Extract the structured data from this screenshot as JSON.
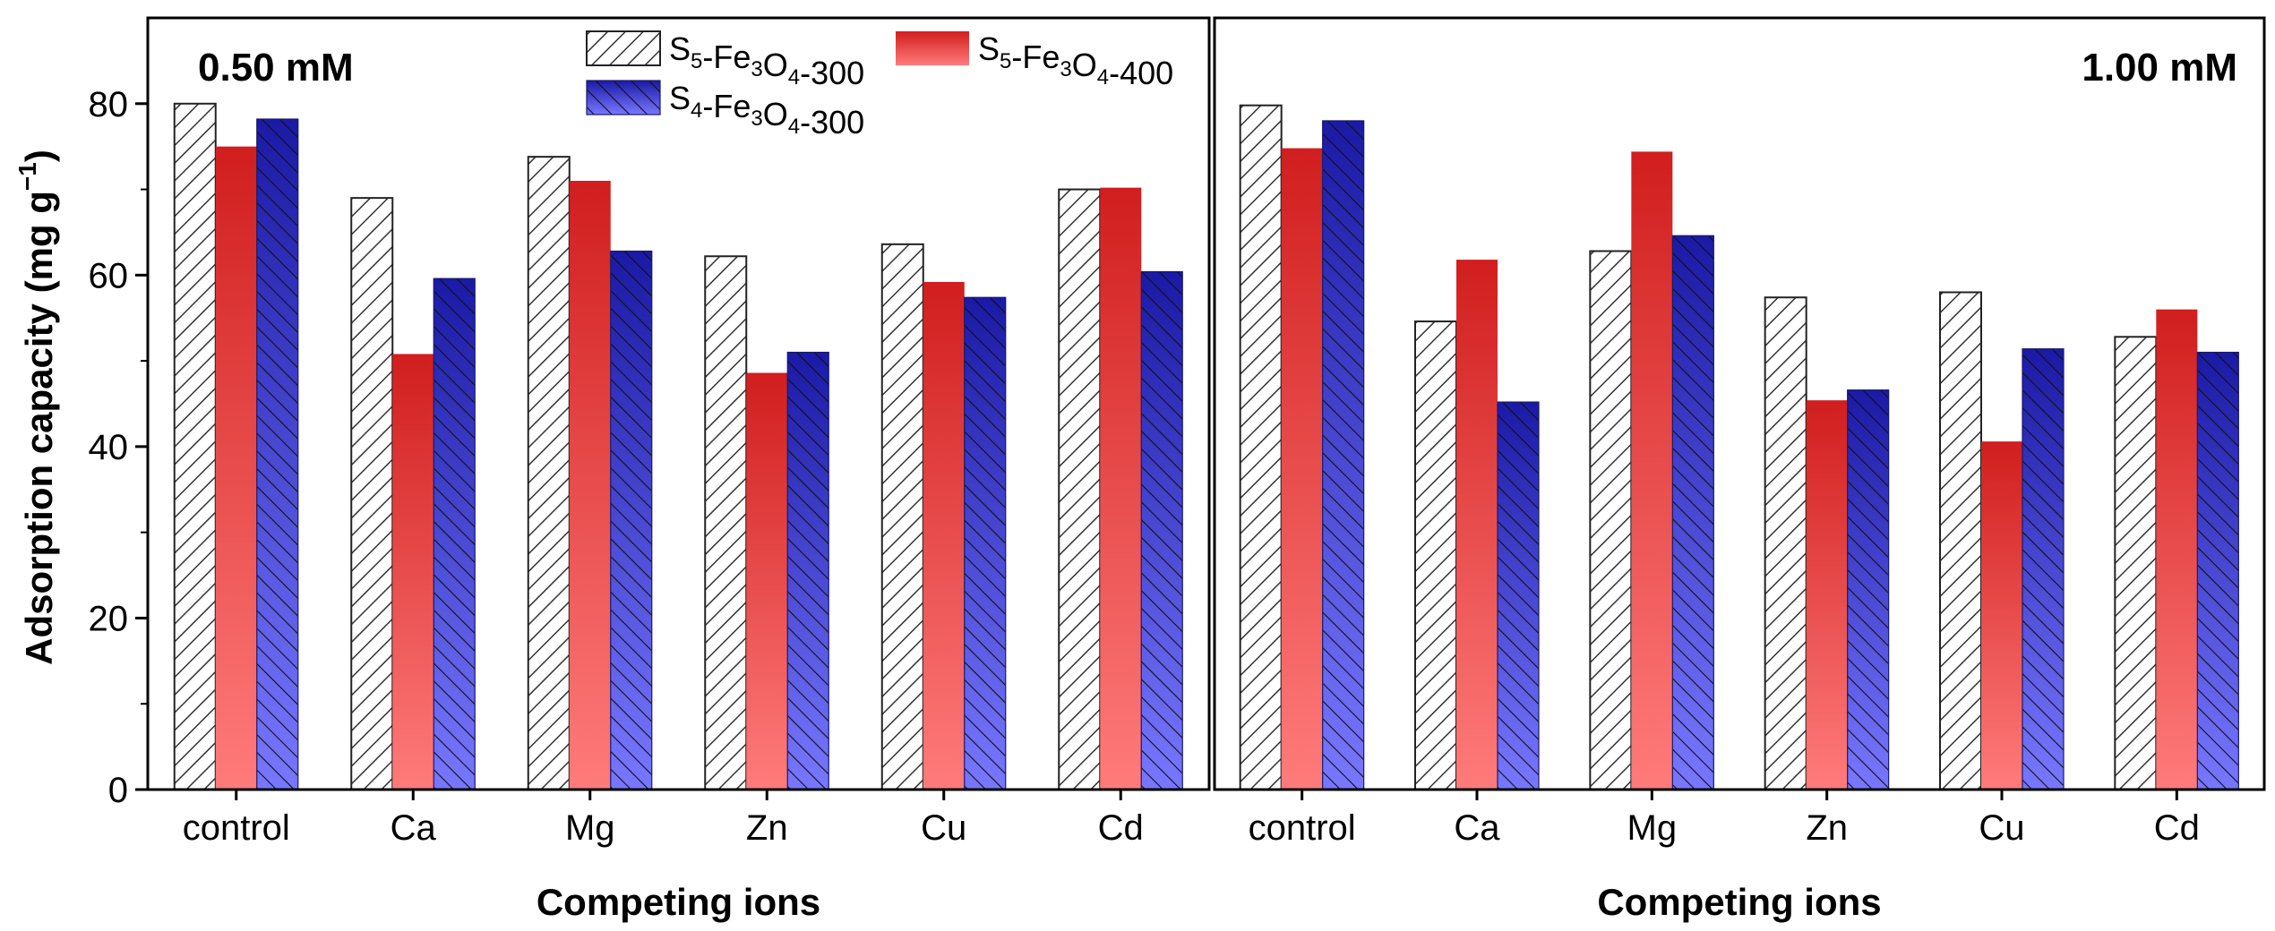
{
  "chart_data": {
    "type": "bar",
    "ylabel": "Adsorption capacity (mg g",
    "ylabel_sup": "−1",
    "ylabel_close": ")",
    "ylim": [
      0,
      90
    ],
    "yticks": [
      0,
      20,
      40,
      60,
      80
    ],
    "legend": [
      {
        "name": "S5-Fe3O4-300",
        "parts": [
          [
            "S",
            ""
          ],
          [
            "5",
            "sub"
          ],
          [
            "-Fe",
            ""
          ],
          [
            "3",
            "sub"
          ],
          [
            "O",
            ""
          ],
          [
            "4",
            "sub"
          ],
          [
            "-300",
            ""
          ]
        ]
      },
      {
        "name": "S5-Fe3O4-400",
        "parts": [
          [
            "S",
            ""
          ],
          [
            "5",
            "sub"
          ],
          [
            "-Fe",
            ""
          ],
          [
            "3",
            "sub"
          ],
          [
            "O",
            ""
          ],
          [
            "4",
            "sub"
          ],
          [
            "-400",
            ""
          ]
        ]
      },
      {
        "name": "S4-Fe3O4-300",
        "parts": [
          [
            "S",
            ""
          ],
          [
            "4",
            "sub"
          ],
          [
            "-Fe",
            ""
          ],
          [
            "3",
            "sub"
          ],
          [
            "O",
            ""
          ],
          [
            "4",
            "sub"
          ],
          [
            "-300",
            ""
          ]
        ]
      }
    ],
    "colors": {
      "s5_300_stroke": "#333333",
      "s5_400_top": "#d11e1e",
      "s5_400_bottom": "#ff7b7b",
      "s4_300_top": "#1a1aa6",
      "s4_300_bottom": "#7777ff"
    },
    "panels": [
      {
        "title": "0.50 mM",
        "xlabel": "Competing ions",
        "categories": [
          "control",
          "Ca",
          "Mg",
          "Zn",
          "Cu",
          "Cd"
        ],
        "series": [
          {
            "name": "S5-Fe3O4-300",
            "values": [
              80.0,
              69.0,
              73.8,
              62.2,
              63.6,
              70.0
            ]
          },
          {
            "name": "S5-Fe3O4-400",
            "values": [
              75.0,
              50.8,
              71.0,
              48.6,
              59.2,
              70.2
            ]
          },
          {
            "name": "S4-Fe3O4-300",
            "values": [
              78.2,
              59.6,
              62.8,
              51.0,
              57.4,
              60.4
            ]
          }
        ]
      },
      {
        "title": "1.00 mM",
        "xlabel": "Competing ions",
        "categories": [
          "control",
          "Ca",
          "Mg",
          "Zn",
          "Cu",
          "Cd"
        ],
        "series": [
          {
            "name": "S5-Fe3O4-300",
            "values": [
              79.8,
              54.6,
              62.8,
              57.4,
              58.0,
              52.8
            ]
          },
          {
            "name": "S5-Fe3O4-400",
            "values": [
              74.8,
              61.8,
              74.4,
              45.4,
              40.6,
              56.0
            ]
          },
          {
            "name": "S4-Fe3O4-300",
            "values": [
              78.0,
              45.2,
              64.6,
              46.6,
              51.4,
              51.0
            ]
          }
        ]
      }
    ]
  }
}
